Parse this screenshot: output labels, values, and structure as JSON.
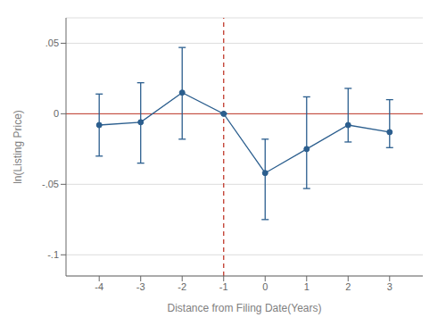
{
  "chart_data": {
    "type": "line",
    "xlabel": "Distance from Filing Date(Years)",
    "ylabel": "ln(Listing Price)",
    "x": [
      -4,
      -3,
      -2,
      -1,
      0,
      1,
      2,
      3
    ],
    "values": [
      -0.008,
      -0.006,
      0.015,
      0.0,
      -0.042,
      -0.025,
      -0.008,
      -0.013
    ],
    "ci_lower": [
      -0.03,
      -0.035,
      -0.018,
      0.0,
      -0.075,
      -0.053,
      -0.02,
      -0.024
    ],
    "ci_upper": [
      0.014,
      0.022,
      0.047,
      0.0,
      -0.018,
      0.012,
      0.018,
      0.01
    ],
    "color": "#2B5E8E",
    "marker": "circle",
    "xlim": [
      -4.8,
      3.8
    ],
    "ylim": [
      -0.115,
      0.068
    ],
    "xticks": [
      -4,
      -3,
      -2,
      -1,
      0,
      1,
      2,
      3
    ],
    "yticks": [
      {
        "value": 0.05,
        "label": ".05"
      },
      0,
      {
        "value": -0.05,
        "label": "-.05"
      },
      {
        "value": -0.1,
        "label": "-.1"
      }
    ],
    "grid": true,
    "reference_lines": [
      {
        "axis": "y",
        "value": 0,
        "color": "#c0392b"
      },
      {
        "axis": "x",
        "value": -1,
        "color": "#c0392b",
        "line_style": "dashed"
      }
    ]
  }
}
